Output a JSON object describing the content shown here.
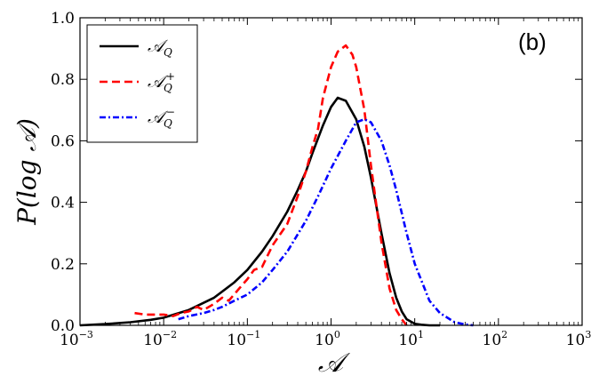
{
  "chart_data": {
    "type": "line",
    "panel_label": "(b)",
    "xlabel": "𝒜",
    "ylabel": "P(log 𝒜)",
    "xscale": "log",
    "xlim": [
      0.001,
      1000
    ],
    "ylim": [
      0.0,
      1.0
    ],
    "x_ticks": [
      {
        "base": "10",
        "exp": "−3",
        "value": 0.001
      },
      {
        "base": "10",
        "exp": "−2",
        "value": 0.01
      },
      {
        "base": "10",
        "exp": "−1",
        "value": 0.1
      },
      {
        "base": "10",
        "exp": "0",
        "value": 1
      },
      {
        "base": "10",
        "exp": "1",
        "value": 10
      },
      {
        "base": "10",
        "exp": "2",
        "value": 100
      },
      {
        "base": "10",
        "exp": "3",
        "value": 1000
      }
    ],
    "y_ticks": [
      {
        "label": "0.0",
        "value": 0.0
      },
      {
        "label": "0.2",
        "value": 0.2
      },
      {
        "label": "0.4",
        "value": 0.4
      },
      {
        "label": "0.6",
        "value": 0.6
      },
      {
        "label": "0.8",
        "value": 0.8
      },
      {
        "label": "1.0",
        "value": 1.0
      }
    ],
    "legend_position": "top-left",
    "series": [
      {
        "name": "𝒜_Q",
        "legend_main": "𝒜",
        "legend_sub": "Q",
        "legend_sup": "",
        "color": "#000000",
        "style": "solid",
        "x": [
          0.001,
          0.002,
          0.004,
          0.007,
          0.01,
          0.02,
          0.04,
          0.07,
          0.1,
          0.15,
          0.2,
          0.3,
          0.4,
          0.5,
          0.6,
          0.8,
          1.0,
          1.2,
          1.5,
          2.0,
          2.5,
          3.0,
          4.0,
          5.0,
          6.0,
          7.0,
          8.0,
          10.0,
          12.0,
          15.0,
          20.0
        ],
        "y": [
          0.0,
          0.004,
          0.01,
          0.018,
          0.025,
          0.05,
          0.09,
          0.14,
          0.18,
          0.24,
          0.29,
          0.37,
          0.44,
          0.5,
          0.56,
          0.65,
          0.71,
          0.74,
          0.73,
          0.67,
          0.58,
          0.48,
          0.3,
          0.17,
          0.09,
          0.045,
          0.02,
          0.005,
          0.002,
          0.0,
          0.0
        ]
      },
      {
        "name": "𝒜_Q^+",
        "legend_main": "𝒜",
        "legend_sub": "Q",
        "legend_sup": "+",
        "color": "#ff0000",
        "style": "dashed",
        "x": [
          0.0045,
          0.006,
          0.008,
          0.01,
          0.013,
          0.016,
          0.02,
          0.025,
          0.03,
          0.04,
          0.05,
          0.06,
          0.08,
          0.1,
          0.12,
          0.15,
          0.2,
          0.3,
          0.4,
          0.5,
          0.6,
          0.7,
          0.8,
          1.0,
          1.2,
          1.5,
          1.8,
          2.0,
          2.5,
          3.0,
          4.0,
          5.0,
          6.0,
          7.0,
          8.0
        ],
        "y": [
          0.04,
          0.035,
          0.035,
          0.035,
          0.03,
          0.04,
          0.045,
          0.06,
          0.05,
          0.07,
          0.09,
          0.08,
          0.12,
          0.15,
          0.18,
          0.19,
          0.26,
          0.33,
          0.42,
          0.5,
          0.58,
          0.64,
          0.74,
          0.84,
          0.89,
          0.91,
          0.88,
          0.84,
          0.7,
          0.52,
          0.27,
          0.12,
          0.05,
          0.02,
          0.0
        ]
      },
      {
        "name": "𝒜_Q^−",
        "legend_main": "𝒜",
        "legend_sub": "Q",
        "legend_sup": "−",
        "color": "#0000ff",
        "style": "dashdot",
        "x": [
          0.015,
          0.02,
          0.03,
          0.04,
          0.05,
          0.07,
          0.1,
          0.15,
          0.2,
          0.3,
          0.5,
          0.7,
          1.0,
          1.5,
          2.0,
          2.5,
          3.0,
          4.0,
          5.0,
          6.0,
          8.0,
          10.0,
          15.0,
          20.0,
          30.0,
          40.0,
          50.0
        ],
        "y": [
          0.02,
          0.03,
          0.04,
          0.05,
          0.06,
          0.08,
          0.1,
          0.14,
          0.18,
          0.24,
          0.34,
          0.42,
          0.51,
          0.6,
          0.66,
          0.67,
          0.66,
          0.6,
          0.52,
          0.44,
          0.3,
          0.2,
          0.08,
          0.04,
          0.01,
          0.003,
          0.0
        ]
      }
    ]
  }
}
